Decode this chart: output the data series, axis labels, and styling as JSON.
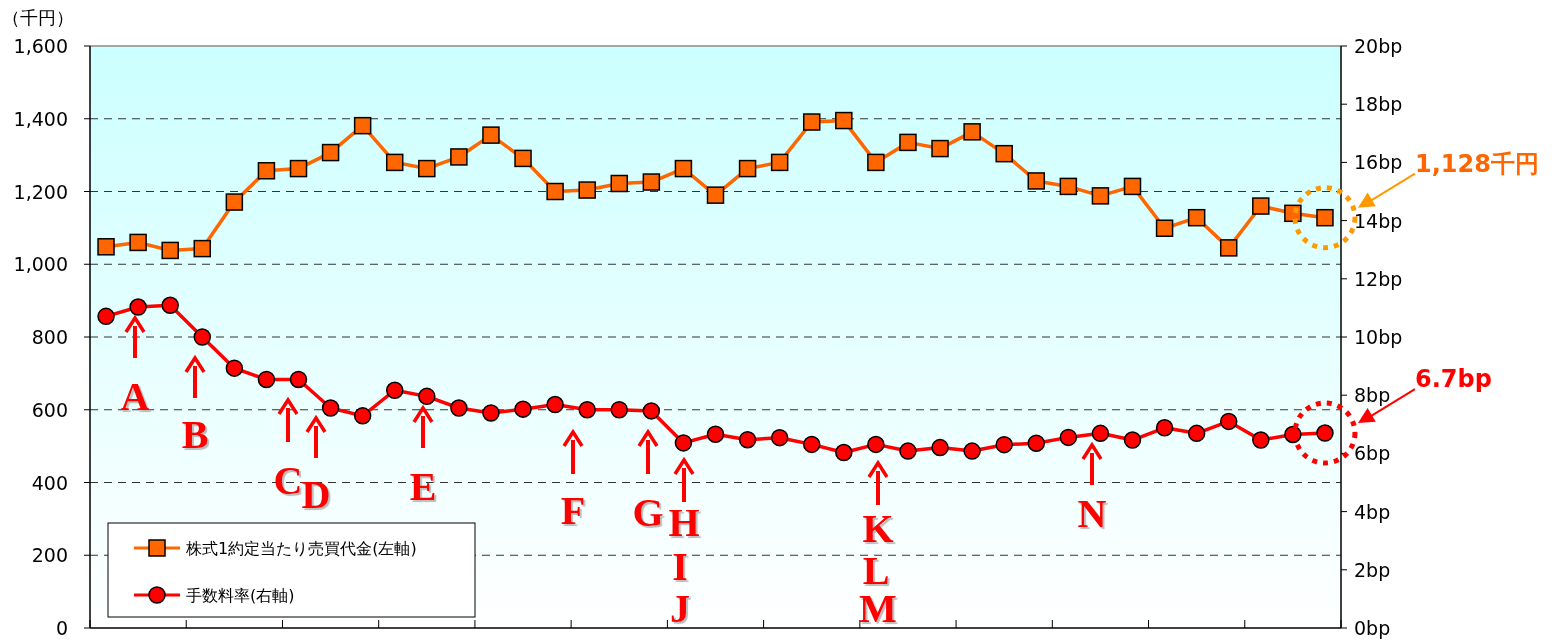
{
  "chart_data": {
    "type": "line",
    "ylabel": "（千円）",
    "categories": [
      null,
      null,
      null,
      null,
      null,
      null,
      null,
      null,
      null,
      null,
      null,
      null,
      null,
      null,
      null,
      null,
      null,
      null,
      null,
      null,
      null,
      null,
      null,
      null,
      null,
      null,
      null,
      null,
      null,
      null,
      null,
      null,
      null,
      null,
      null,
      null,
      null,
      null,
      null
    ],
    "series": [
      {
        "name": "株式1約定当たり売買代金(左軸)",
        "color": "#ff6600",
        "marker": "square",
        "values": [
          1048,
          1060,
          1038,
          1043,
          1171,
          1257,
          1263,
          1307,
          1381,
          1280,
          1263,
          1295,
          1355,
          1291,
          1200,
          1204,
          1222,
          1226,
          1263,
          1190,
          1263,
          1280,
          1391,
          1395,
          1280,
          1335,
          1318,
          1364,
          1304,
          1229,
          1214,
          1188,
          1214,
          1099,
          1128,
          1045,
          1160,
          1140,
          1128
        ]
      },
      {
        "name": "手数料率(右軸)",
        "color": "#ff0000",
        "marker": "circle",
        "axis": "y2",
        "values": [
          10.71,
          11.03,
          11.09,
          10.0,
          8.93,
          8.54,
          8.54,
          7.56,
          7.29,
          8.17,
          7.96,
          7.56,
          7.39,
          7.52,
          7.68,
          7.5,
          7.5,
          7.46,
          6.36,
          6.66,
          6.47,
          6.54,
          6.31,
          6.03,
          6.31,
          6.08,
          6.2,
          6.08,
          6.3,
          6.35,
          6.55,
          6.69,
          6.46,
          6.88,
          6.69,
          7.1,
          6.46,
          6.65,
          6.7
        ]
      }
    ],
    "ylim": [
      0,
      1600
    ],
    "yticks": [
      0,
      200,
      400,
      600,
      800,
      {
        "value": 1000,
        "label": "1,000"
      },
      {
        "value": 1200,
        "label": "1,200"
      },
      {
        "value": 1400,
        "label": "1,400"
      },
      {
        "value": 1600,
        "label": "1,600"
      }
    ],
    "y2lim": [
      0,
      20
    ],
    "y2ticks": [
      {
        "value": 0,
        "label": "0bp"
      },
      {
        "value": 2,
        "label": "2bp"
      },
      {
        "value": 4,
        "label": "4bp"
      },
      {
        "value": 6,
        "label": "6bp"
      },
      {
        "value": 8,
        "label": "8bp"
      },
      {
        "value": 10,
        "label": "10bp"
      },
      {
        "value": 12,
        "label": "12bp"
      },
      {
        "value": 14,
        "label": "14bp"
      },
      {
        "value": 16,
        "label": "16bp"
      },
      {
        "value": 18,
        "label": "18bp"
      },
      {
        "value": 20,
        "label": "20bp"
      }
    ],
    "grid": "y",
    "legend": "bottom left",
    "line_style": "solid",
    "annotations": [
      "A",
      "B",
      "C",
      "D",
      "E",
      "F",
      "G",
      "H",
      "I",
      "J",
      "K",
      "L",
      "M",
      "N",
      "1,128千円",
      "6.7bp"
    ]
  }
}
